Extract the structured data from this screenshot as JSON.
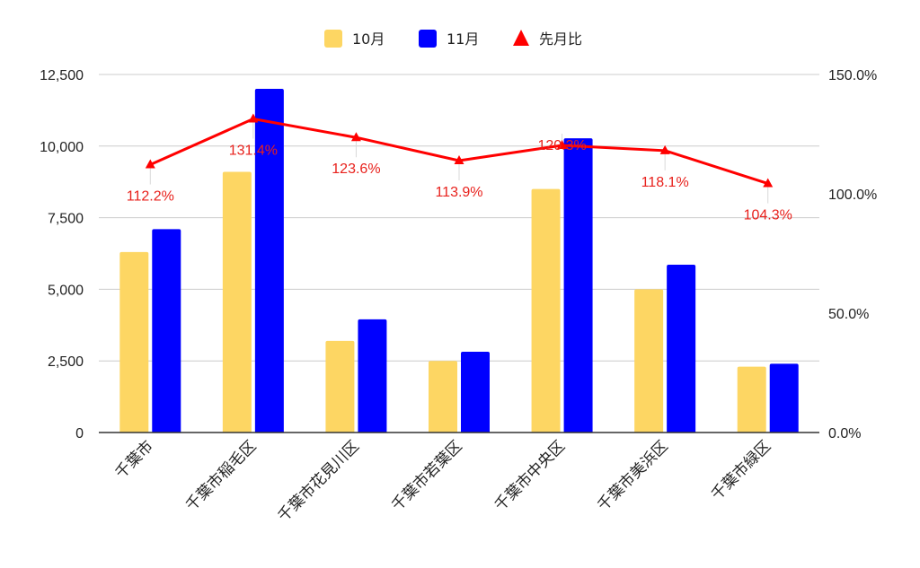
{
  "chart_data": {
    "type": "bar",
    "categories": [
      "千葉市",
      "千葉市稲毛区",
      "千葉市花見川区",
      "千葉市若葉区",
      "千葉市中央区",
      "千葉市美浜区",
      "千葉市緑区"
    ],
    "series": [
      {
        "name": "10月",
        "type": "bar",
        "axis": "left",
        "color": "#fdd663",
        "values": [
          6300,
          9100,
          3200,
          2500,
          8500,
          5000,
          2300
        ]
      },
      {
        "name": "11月",
        "type": "bar",
        "axis": "left",
        "color": "#0000ff",
        "values": [
          7100,
          12000,
          3950,
          2820,
          10270,
          5860,
          2400
        ]
      },
      {
        "name": "先月比",
        "type": "line",
        "axis": "right",
        "color": "#ff0000",
        "marker": "triangle",
        "values": [
          112.2,
          131.4,
          123.6,
          113.9,
          120.3,
          118.1,
          104.3
        ]
      }
    ],
    "data_labels": [
      "112.2%",
      "131.4%",
      "123.6%",
      "113.9%",
      "120.3%",
      "118.1%",
      "104.3%"
    ],
    "y_left": {
      "min": 0,
      "max": 12500,
      "ticks": [
        "0",
        "2,500",
        "5,000",
        "7,500",
        "10,000",
        "12,500"
      ],
      "tick_values": [
        0,
        2500,
        5000,
        7500,
        10000,
        12500
      ]
    },
    "y_right": {
      "min": 0,
      "max": 150,
      "ticks": [
        "0.0%",
        "50.0%",
        "100.0%",
        "150.0%"
      ],
      "tick_values": [
        0,
        50,
        100,
        150
      ]
    },
    "legend_position": "top",
    "grid": true,
    "title": "",
    "xlabel": "",
    "ylabel": ""
  }
}
